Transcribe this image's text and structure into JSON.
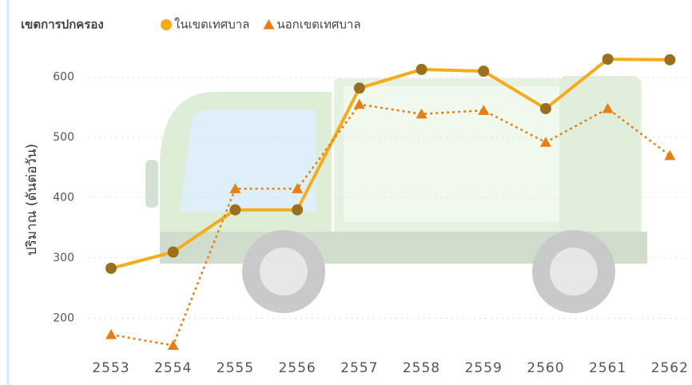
{
  "chart_data": {
    "type": "line",
    "legend_title": "เขตการปกครอง",
    "y_label": "ปริมาณ (ตันต่อวัน)",
    "categories": [
      "2553",
      "2554",
      "2555",
      "2556",
      "2557",
      "2558",
      "2559",
      "2560",
      "2561",
      "2562"
    ],
    "series": [
      {
        "name": "ในเขตเทศบาล",
        "color": "#f5ac1c",
        "marker_color": "#9c6f1e",
        "marker": "circle",
        "dash": false,
        "values": [
          283,
          310,
          380,
          380,
          582,
          613,
          610,
          548,
          630,
          629
        ]
      },
      {
        "name": "นอกเขตเทศบาล",
        "color": "#e67e16",
        "marker_color": "#e67e16",
        "marker": "triangle",
        "dash": true,
        "values": [
          173,
          155,
          415,
          415,
          555,
          539,
          545,
          492,
          548,
          470
        ]
      }
    ],
    "ylim": [
      145,
      650
    ],
    "yticks": [
      200,
      300,
      400,
      500,
      600
    ],
    "grid": true
  }
}
